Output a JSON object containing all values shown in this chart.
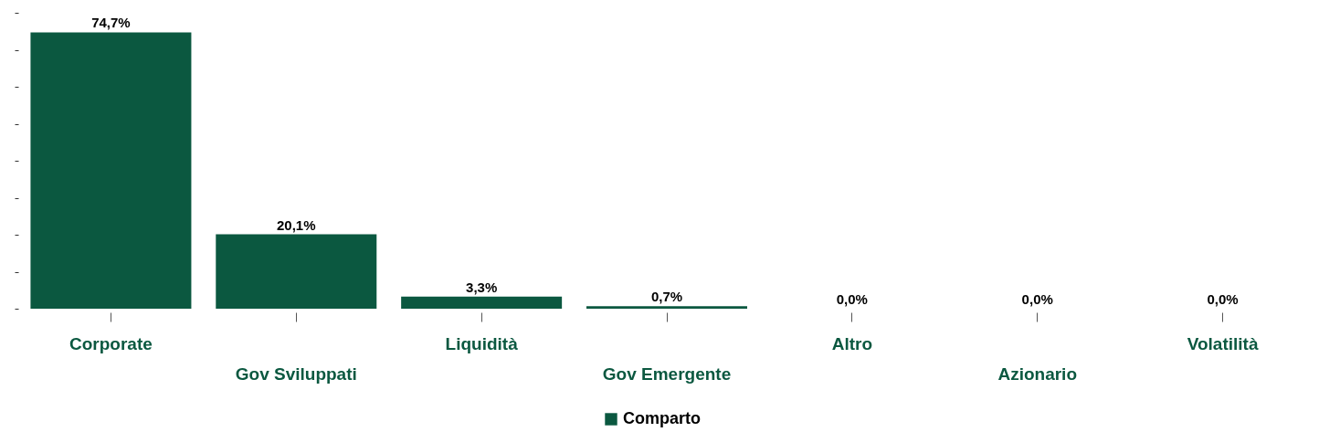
{
  "chart_data": {
    "type": "bar",
    "categories": [
      "Corporate",
      "Gov Sviluppati",
      "Liquidità",
      "Gov Emergente",
      "Altro",
      "Azionario",
      "Volatilità"
    ],
    "series": [
      {
        "name": "Comparto",
        "color": "#0b5840",
        "values": [
          74.7,
          20.1,
          3.3,
          0.7,
          0.0,
          0.0,
          0.0
        ],
        "value_labels": [
          "74,7%",
          "20,1%",
          "3,3%",
          "0,7%",
          "0,0%",
          "0,0%",
          "0,0%"
        ]
      }
    ],
    "grid": false,
    "legend": "bottom",
    "tick_labels": "x"
  }
}
